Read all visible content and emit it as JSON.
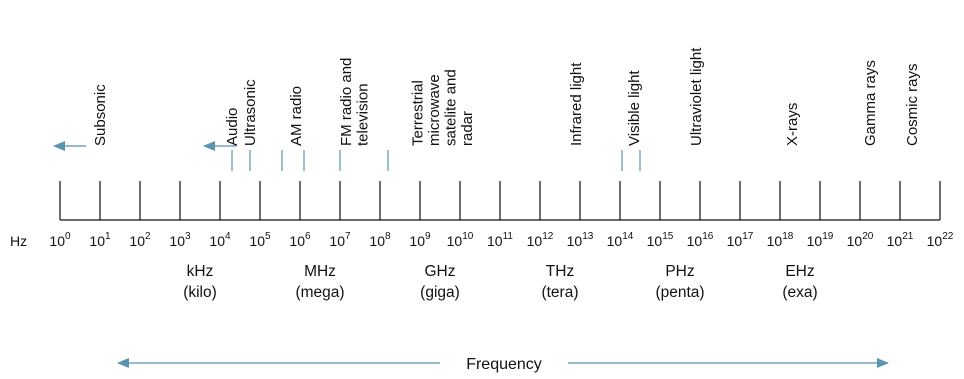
{
  "diagram": {
    "unit_label": "Hz",
    "base": "10",
    "exponents": [
      "0",
      "1",
      "2",
      "3",
      "4",
      "5",
      "6",
      "7",
      "8",
      "9",
      "10",
      "11",
      "12",
      "13",
      "14",
      "15",
      "16",
      "17",
      "18",
      "19",
      "20",
      "21",
      "22"
    ],
    "bands": [
      {
        "lines": [
          "Subsonic"
        ],
        "at_exp": 1,
        "arrow": "left"
      },
      {
        "lines": [
          "Audio"
        ],
        "at_exp": 4.3
      },
      {
        "lines": [
          "Ultrasonic"
        ],
        "at_exp": 4.75,
        "arrow": "left"
      },
      {
        "lines": [
          "AM radio"
        ],
        "at_exp": 5.9
      },
      {
        "lines": [
          "FM radio and",
          "television"
        ],
        "at_exp": 7.35
      },
      {
        "lines": [
          "Terrestrial",
          "microwave",
          "satelite and",
          "radar"
        ],
        "at_exp": 9.55
      },
      {
        "lines": [
          "Infrared light"
        ],
        "at_exp": 12.9
      },
      {
        "lines": [
          "Visible light"
        ],
        "at_exp": 14.35
      },
      {
        "lines": [
          "Ultraviolet light"
        ],
        "at_exp": 15.9
      },
      {
        "lines": [
          "X-rays"
        ],
        "at_exp": 18.3
      },
      {
        "lines": [
          "Gamma rays"
        ],
        "at_exp": 20.25
      },
      {
        "lines": [
          "Cosmic rays"
        ],
        "at_exp": 21.3
      }
    ],
    "markers_at_exp": [
      4.3,
      4.75,
      5.55,
      6.1,
      7.0,
      8.2,
      14.05,
      14.5
    ],
    "prefixes": [
      {
        "unit": "kHz",
        "name": "(kilo)",
        "at_exp": 3
      },
      {
        "unit": "MHz",
        "name": "(mega)",
        "at_exp": 6
      },
      {
        "unit": "GHz",
        "name": "(giga)",
        "at_exp": 9
      },
      {
        "unit": "THz",
        "name": "(tera)",
        "at_exp": 12
      },
      {
        "unit": "PHz",
        "name": "(penta)",
        "at_exp": 15
      },
      {
        "unit": "EHz",
        "name": "(exa)",
        "at_exp": 18
      }
    ],
    "axis_title": "Frequency",
    "colors": {
      "accent": "#5a94b0",
      "ink": "#111111"
    }
  }
}
